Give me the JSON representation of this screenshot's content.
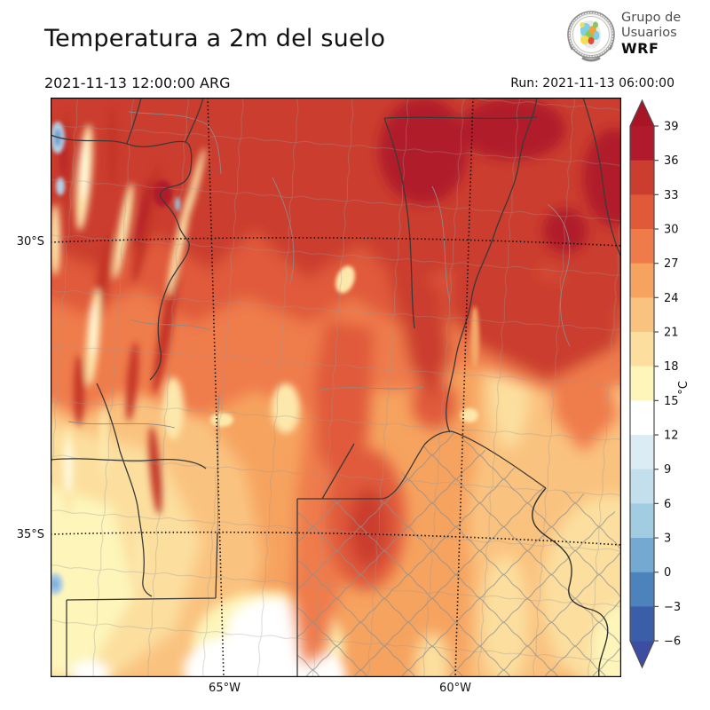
{
  "header": {
    "title": "Temperatura a 2m del suelo",
    "valid_time": "2021-11-13 12:00:00 ARG",
    "run_label": "Run: 2021-11-13 06:00:00"
  },
  "logo": {
    "line1": "Grupo de",
    "line2": "Usuarios",
    "line3": "WRF"
  },
  "map": {
    "lat_labels": [
      "30°S",
      "35°S"
    ],
    "lon_labels": [
      "65°W",
      "60°W"
    ],
    "description": "Filled contour map of 2 m temperature over central-northern Argentina"
  },
  "colorbar": {
    "unit": "°C",
    "tick_labels": [
      "39",
      "36",
      "33",
      "30",
      "27",
      "24",
      "21",
      "18",
      "15",
      "12",
      "9",
      "6",
      "3",
      "0",
      "−3",
      "−6"
    ],
    "segment_colors_top_to_bottom": [
      "#b11a2c",
      "#cb3d2e",
      "#e05a3a",
      "#ef7b4b",
      "#f6a35f",
      "#fac27f",
      "#fcdf9f",
      "#fdf5ba",
      "#ffffff",
      "#dcecf5",
      "#c3dfed",
      "#a2cce2",
      "#74aad1",
      "#4c83bd",
      "#3b5ea9"
    ],
    "arrow_top_color": "#a81527",
    "arrow_bottom_color": "#3c4da2",
    "level_min": -6,
    "level_max": 39,
    "level_step": 3
  }
}
